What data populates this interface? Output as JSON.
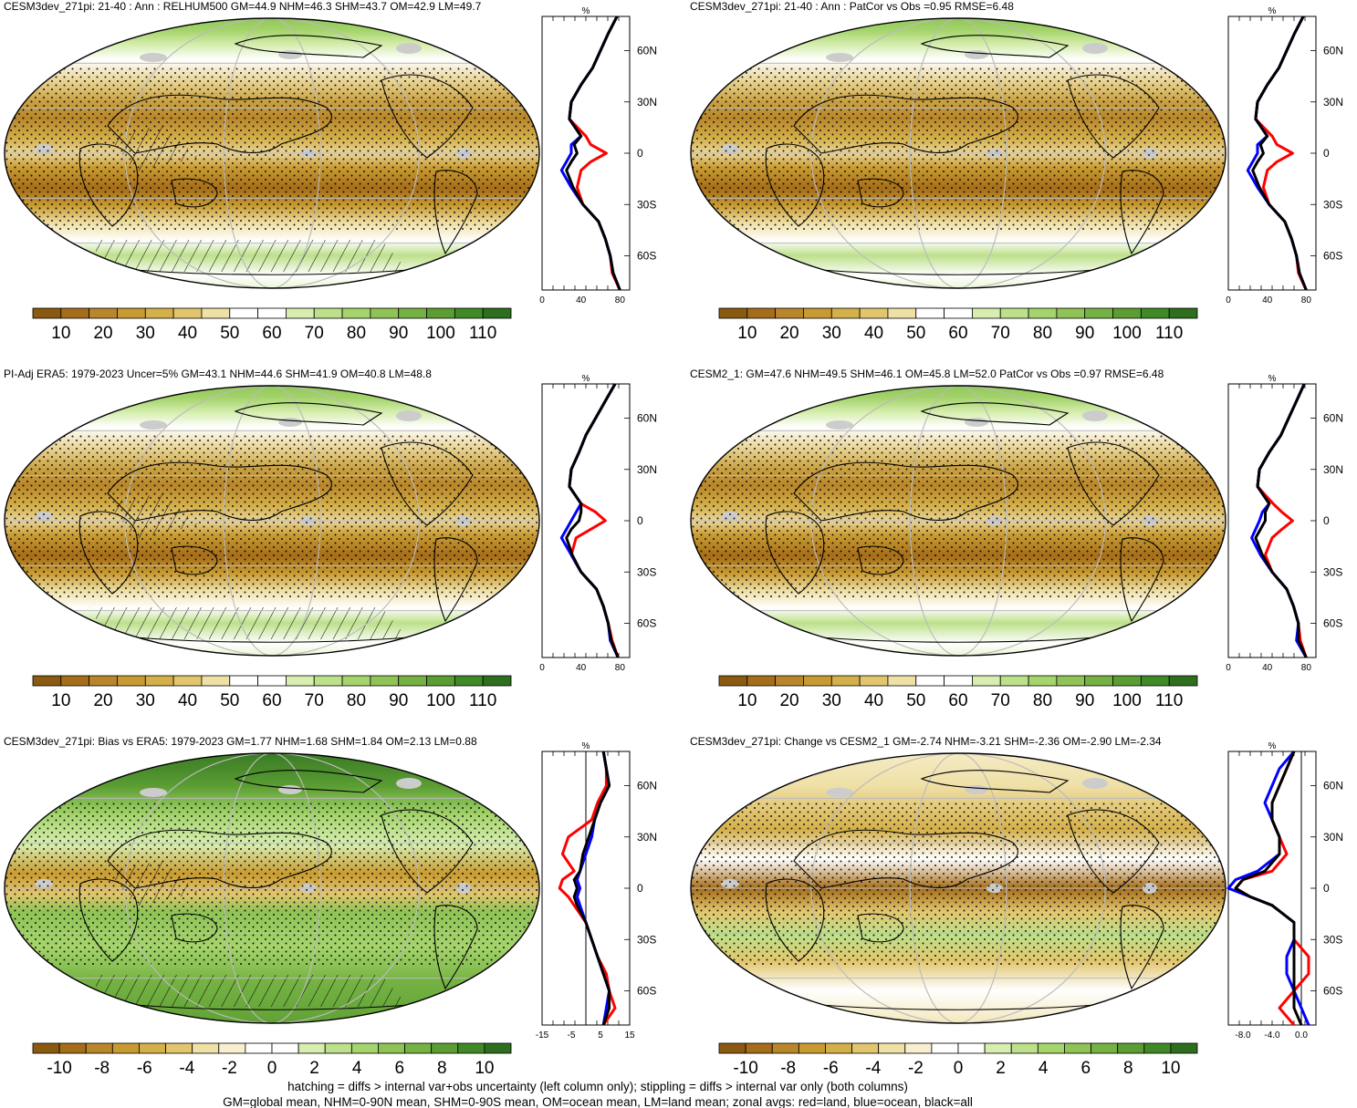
{
  "colors": {
    "abs_scale": [
      "#8a5a10",
      "#a56d1a",
      "#b8862b",
      "#c89b32",
      "#d4b04a",
      "#e2c66e",
      "#efe0a6",
      "#ffffff",
      "#ffffff",
      "#d7eeb0",
      "#bde08a",
      "#a5d46c",
      "#8fc356",
      "#75b243",
      "#5b9d33",
      "#3f8a26",
      "#2d6f1e"
    ],
    "diff_scale": [
      "#8a5a10",
      "#a56d1a",
      "#b8862b",
      "#c89b32",
      "#d4b04a",
      "#e2c66e",
      "#efe0a6",
      "#f7efcf",
      "#ffffff",
      "#ffffff",
      "#d7eeb0",
      "#bde08a",
      "#a5d46c",
      "#8fc356",
      "#75b243",
      "#5b9d33",
      "#3f8a26",
      "#2d6f1e"
    ],
    "land_line": "#ff0000",
    "ocean_line": "#0000ff",
    "all_line": "#000000",
    "missing": "#cccccc"
  },
  "footer": {
    "line1": "hatching = diffs > internal var+obs uncertainty (left column only); stippling = diffs > internal var only (both columns)",
    "line2": "GM=global mean, NHM=0-90N mean, SHM=0-90S mean, OM=ocean mean, LM=land mean; zonal avgs: red=land, blue=ocean, black=all"
  },
  "panels": [
    {
      "id": "model",
      "title": "CESM3dev_271pi: 21-40 : Ann : RELHUM500 GM=44.9 NHM=46.3 SHM=43.7 OM=42.9 LM=49.7",
      "colorbar_labels": [
        "10",
        "20",
        "30",
        "40",
        "50",
        "60",
        "70",
        "80",
        "90",
        "100",
        "110"
      ],
      "chart_data": {
        "type": "line",
        "orientation": "vertical-profile",
        "unit_label": "%",
        "xlim": [
          0,
          90
        ],
        "xticks": [
          "0",
          "40",
          "80"
        ],
        "ylim": [
          -80,
          80
        ],
        "lat_labels": [
          "60N",
          "30N",
          "0",
          "30S",
          "60S"
        ],
        "lat": [
          80,
          70,
          60,
          50,
          40,
          30,
          20,
          10,
          5,
          0,
          -5,
          -10,
          -20,
          -30,
          -40,
          -50,
          -60,
          -70,
          -80
        ],
        "series": [
          {
            "color": "land",
            "values": [
              77,
              68,
              60,
              52,
              40,
              30,
              28,
              45,
              50,
              66,
              50,
              40,
              36,
              42,
              58,
              65,
              70,
              72,
              80
            ]
          },
          {
            "color": "ocean",
            "values": [
              77,
              68,
              60,
              52,
              40,
              30,
              28,
              40,
              30,
              30,
              25,
              20,
              30,
              42,
              58,
              65,
              70,
              73,
              80
            ]
          },
          {
            "color": "all",
            "values": [
              77,
              68,
              60,
              52,
              40,
              30,
              28,
              40,
              33,
              36,
              30,
              25,
              32,
              42,
              58,
              65,
              70,
              73,
              80
            ]
          }
        ]
      }
    },
    {
      "id": "model-vs-obs",
      "title": "CESM3dev_271pi: 21-40 : Ann : PatCor vs Obs =0.95 RMSE=6.48",
      "colorbar_labels": [
        "10",
        "20",
        "30",
        "40",
        "50",
        "60",
        "70",
        "80",
        "90",
        "100",
        "110"
      ],
      "chart_data": {
        "type": "line",
        "orientation": "vertical-profile",
        "unit_label": "%",
        "xlim": [
          0,
          90
        ],
        "xticks": [
          "0",
          "40",
          "80"
        ],
        "ylim": [
          -80,
          80
        ],
        "lat_labels": [
          "60N",
          "30N",
          "0",
          "30S",
          "60S"
        ],
        "lat": [
          80,
          70,
          60,
          50,
          40,
          30,
          20,
          10,
          5,
          0,
          -5,
          -10,
          -20,
          -30,
          -40,
          -50,
          -60,
          -70,
          -80
        ],
        "series": [
          {
            "color": "land",
            "values": [
              77,
              68,
              60,
              52,
              40,
              30,
              28,
              45,
              50,
              66,
              50,
              40,
              36,
              42,
              58,
              65,
              70,
              72,
              80
            ]
          },
          {
            "color": "ocean",
            "values": [
              77,
              68,
              60,
              52,
              40,
              30,
              28,
              40,
              30,
              30,
              25,
              20,
              30,
              42,
              58,
              65,
              70,
              73,
              80
            ]
          },
          {
            "color": "all",
            "values": [
              77,
              68,
              60,
              52,
              40,
              30,
              28,
              40,
              33,
              36,
              30,
              25,
              32,
              42,
              58,
              65,
              70,
              73,
              80
            ]
          }
        ]
      }
    },
    {
      "id": "obs",
      "title": "PI-Adj ERA5: 1979-2023 Uncer=5% GM=43.1 NHM=44.6 SHM=41.9 OM=40.8 LM=48.8",
      "colorbar_labels": [
        "10",
        "20",
        "30",
        "40",
        "50",
        "60",
        "70",
        "80",
        "90",
        "100",
        "110"
      ],
      "chart_data": {
        "type": "line",
        "orientation": "vertical-profile",
        "unit_label": "%",
        "xlim": [
          0,
          90
        ],
        "xticks": [
          "0",
          "40",
          "80"
        ],
        "ylim": [
          -80,
          80
        ],
        "lat_labels": [
          "60N",
          "30N",
          "0",
          "30S",
          "60S"
        ],
        "lat": [
          80,
          70,
          60,
          50,
          40,
          30,
          20,
          10,
          5,
          0,
          -5,
          -10,
          -20,
          -30,
          -40,
          -50,
          -60,
          -70,
          -80
        ],
        "series": [
          {
            "color": "land",
            "values": [
              75,
              65,
              55,
              45,
              38,
              30,
              28,
              40,
              55,
              65,
              50,
              35,
              30,
              40,
              56,
              63,
              68,
              72,
              78
            ]
          },
          {
            "color": "ocean",
            "values": [
              75,
              65,
              55,
              45,
              38,
              30,
              28,
              40,
              35,
              30,
              25,
              20,
              30,
              40,
              56,
              63,
              68,
              70,
              78
            ]
          },
          {
            "color": "all",
            "values": [
              75,
              65,
              55,
              45,
              38,
              30,
              28,
              40,
              40,
              38,
              30,
              25,
              31,
              40,
              56,
              63,
              68,
              71,
              78
            ]
          }
        ]
      }
    },
    {
      "id": "cesm2",
      "title": "CESM2_1: GM=47.6 NHM=49.5 SHM=46.1 OM=45.8 LM=52.0 PatCor vs Obs =0.97 RMSE=6.48",
      "colorbar_labels": [
        "10",
        "20",
        "30",
        "40",
        "50",
        "60",
        "70",
        "80",
        "90",
        "100",
        "110"
      ],
      "chart_data": {
        "type": "line",
        "orientation": "vertical-profile",
        "unit_label": "%",
        "xlim": [
          0,
          90
        ],
        "xticks": [
          "0",
          "40",
          "80"
        ],
        "ylim": [
          -80,
          80
        ],
        "lat_labels": [
          "60N",
          "30N",
          "0",
          "30S",
          "60S"
        ],
        "lat": [
          80,
          70,
          60,
          50,
          40,
          30,
          20,
          10,
          5,
          0,
          -5,
          -10,
          -20,
          -30,
          -40,
          -50,
          -60,
          -70,
          -80
        ],
        "series": [
          {
            "color": "land",
            "values": [
              78,
              70,
              62,
              54,
              42,
              32,
              30,
              46,
              55,
              66,
              55,
              45,
              38,
              45,
              60,
              67,
              72,
              74,
              80
            ]
          },
          {
            "color": "ocean",
            "values": [
              78,
              70,
              62,
              54,
              42,
              32,
              30,
              42,
              35,
              32,
              28,
              24,
              33,
              45,
              60,
              67,
              72,
              70,
              80
            ]
          },
          {
            "color": "all",
            "values": [
              78,
              70,
              62,
              54,
              42,
              32,
              30,
              42,
              38,
              38,
              33,
              28,
              35,
              45,
              60,
              67,
              72,
              72,
              80
            ]
          }
        ]
      }
    },
    {
      "id": "bias",
      "title": "CESM3dev_271pi: Bias vs ERA5: 1979-2023 GM=1.77 NHM=1.68 SHM=1.84 OM=2.13 LM=0.88",
      "colorbar_labels": [
        "-10",
        "-8",
        "-6",
        "-4",
        "-2",
        "0",
        "2",
        "4",
        "6",
        "8",
        "10"
      ],
      "chart_data": {
        "type": "line",
        "orientation": "vertical-profile",
        "unit_label": "%",
        "xlim": [
          -15,
          15
        ],
        "xticks": [
          "-15",
          "-5",
          "5",
          "15"
        ],
        "ylim": [
          -80,
          80
        ],
        "lat_labels": [
          "60N",
          "30N",
          "0",
          "30S",
          "60S"
        ],
        "lat": [
          80,
          70,
          60,
          50,
          40,
          30,
          20,
          10,
          5,
          0,
          -5,
          -10,
          -20,
          -30,
          -40,
          -50,
          -60,
          -70,
          -80
        ],
        "series": [
          {
            "color": "land",
            "values": [
              6,
              7,
              7,
              4,
              2,
              -6,
              -8,
              -4,
              -8,
              -9,
              -6,
              -4,
              0,
              2,
              4,
              7,
              8,
              10,
              6
            ]
          },
          {
            "color": "ocean",
            "values": [
              6,
              7,
              8,
              5,
              3,
              2,
              0,
              -2,
              -3,
              -2,
              -3,
              -2,
              0,
              2,
              4,
              6,
              8,
              7,
              6
            ]
          },
          {
            "color": "all",
            "values": [
              6,
              7,
              8,
              5,
              3,
              1,
              -1,
              -2,
              -4,
              -3,
              -4,
              -3,
              0,
              2,
              4,
              6,
              8,
              8,
              6
            ]
          }
        ]
      }
    },
    {
      "id": "change",
      "title": "CESM3dev_271pi: Change vs CESM2_1 GM=-2.74 NHM=-3.21 SHM=-2.36 OM=-2.90 LM=-2.34",
      "colorbar_labels": [
        "-10",
        "-8",
        "-6",
        "-4",
        "-2",
        "0",
        "2",
        "4",
        "6",
        "8",
        "10"
      ],
      "chart_data": {
        "type": "line",
        "orientation": "vertical-profile",
        "unit_label": "%",
        "xlim": [
          -10,
          2
        ],
        "xticks": [
          "-8.0",
          "-4.0",
          "0.0"
        ],
        "ylim": [
          -80,
          80
        ],
        "lat_labels": [
          "60N",
          "30N",
          "0",
          "30S",
          "60S"
        ],
        "lat": [
          80,
          70,
          60,
          50,
          40,
          30,
          20,
          10,
          5,
          0,
          -5,
          -10,
          -20,
          -30,
          -40,
          -50,
          -60,
          -70,
          -80
        ],
        "series": [
          {
            "color": "land",
            "values": [
              -1,
              -2,
              -3,
              -4,
              -4,
              -3,
              -2,
              -4,
              -8,
              -9,
              -7,
              -4,
              -1,
              -1,
              1,
              1,
              -1,
              -3,
              -1
            ]
          },
          {
            "color": "ocean",
            "values": [
              -1,
              -3,
              -4,
              -5,
              -4,
              -3,
              -3,
              -6,
              -9,
              -10,
              -7,
              -4,
              -1,
              -1,
              -2,
              -2,
              -1,
              0,
              1
            ]
          },
          {
            "color": "all",
            "values": [
              -1,
              -2,
              -3,
              -4,
              -4,
              -3,
              -3,
              -5,
              -8,
              -9,
              -7,
              -4,
              -1,
              -1,
              -1,
              -1,
              -1,
              -1,
              0
            ]
          }
        ]
      }
    }
  ]
}
